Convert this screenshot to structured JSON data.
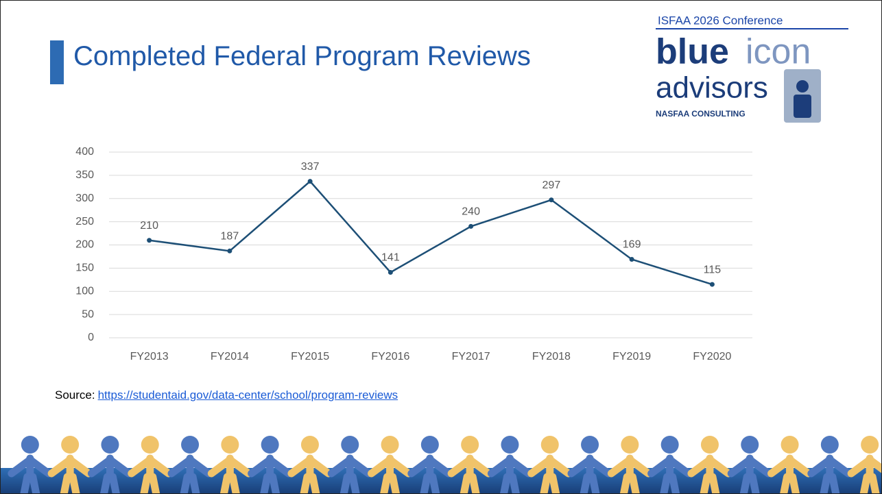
{
  "header": {
    "title": "Completed Federal Program Reviews"
  },
  "logo": {
    "conference": "ISFAA 2026 Conference",
    "brand_bold": "blue",
    "brand_light": "icon",
    "brand_second": "advisors",
    "tagline": "NASFAA CONSULTING"
  },
  "chart_data": {
    "type": "line",
    "categories": [
      "FY2013",
      "FY2014",
      "FY2015",
      "FY2016",
      "FY2017",
      "FY2018",
      "FY2019",
      "FY2020"
    ],
    "values": [
      210,
      187,
      337,
      141,
      240,
      297,
      169,
      115
    ],
    "color": "#1d4f76",
    "ylim": [
      0,
      400
    ],
    "yticks": [
      0,
      50,
      100,
      150,
      200,
      250,
      300,
      350,
      400
    ],
    "grid": true
  },
  "source": {
    "label": "Source:",
    "link": "https://studentaid.gov/data-center/school/program-reviews"
  }
}
